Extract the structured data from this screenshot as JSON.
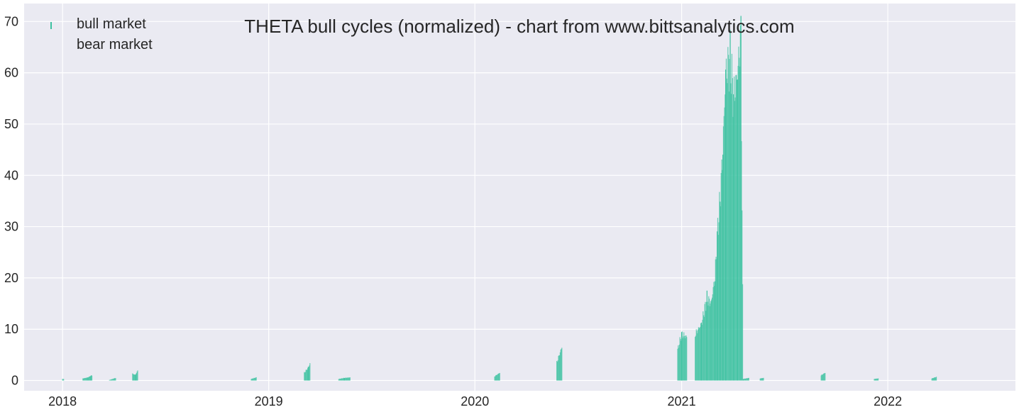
{
  "chart_data": {
    "type": "bar",
    "title": "THETA bull cycles (normalized)  - chart from www.bittsanalytics.com",
    "xlabel": "",
    "ylabel": "",
    "x_range": [
      "2017-10-25",
      "2022-08-15"
    ],
    "ylim": [
      -2,
      73.5
    ],
    "yticks": [
      0,
      10,
      20,
      30,
      40,
      50,
      60,
      70
    ],
    "xticks": [
      {
        "label": "2018",
        "date": "2018-01-01"
      },
      {
        "label": "2019",
        "date": "2019-01-01"
      },
      {
        "label": "2020",
        "date": "2020-01-01"
      },
      {
        "label": "2021",
        "date": "2021-01-01"
      },
      {
        "label": "2022",
        "date": "2022-01-01"
      }
    ],
    "grid": true,
    "legend_position": "top-left",
    "series": [
      {
        "name": "bull market",
        "color": "#3cc1a0",
        "anchors": [
          [
            "2018-01-01",
            0.3
          ],
          [
            "2018-01-03",
            0.3
          ],
          [
            "2018-02-06",
            0.4
          ],
          [
            "2018-02-15",
            0.6
          ],
          [
            "2018-02-20",
            0.9
          ],
          [
            "2018-02-22",
            1.0
          ],
          [
            "2018-03-25",
            0.1
          ],
          [
            "2018-04-05",
            0.5
          ],
          [
            "2018-04-20",
            1.0
          ],
          [
            "2018-05-05",
            1.3
          ],
          [
            "2018-05-10",
            1.1
          ],
          [
            "2018-05-14",
            1.9
          ],
          [
            "2018-08-01",
            0.5
          ],
          [
            "2018-08-15",
            0.6
          ],
          [
            "2018-08-31",
            0.7
          ],
          [
            "2018-12-01",
            0.3
          ],
          [
            "2018-12-10",
            0.6
          ],
          [
            "2018-12-30",
            0.2
          ],
          [
            "2019-01-20",
            0.3
          ],
          [
            "2019-02-05",
            0.5
          ],
          [
            "2019-02-20",
            1.0
          ],
          [
            "2019-03-05",
            1.5
          ],
          [
            "2019-03-12",
            2.5
          ],
          [
            "2019-03-15",
            3.3
          ],
          [
            "2019-05-05",
            0.3
          ],
          [
            "2019-05-15",
            0.5
          ],
          [
            "2019-05-25",
            0.6
          ],
          [
            "2019-07-08",
            0.3
          ],
          [
            "2019-07-25",
            0.5
          ],
          [
            "2019-11-25",
            0.2
          ],
          [
            "2019-12-20",
            0.4
          ],
          [
            "2020-01-20",
            0.6
          ],
          [
            "2020-02-05",
            0.8
          ],
          [
            "2020-02-14",
            1.5
          ],
          [
            "2020-03-25",
            0.2
          ],
          [
            "2020-04-10",
            0.4
          ],
          [
            "2020-04-25",
            0.8
          ],
          [
            "2020-05-10",
            1.5
          ],
          [
            "2020-05-25",
            3.5
          ],
          [
            "2020-06-03",
            6.5
          ],
          [
            "2020-06-20",
            0.2
          ],
          [
            "2020-07-15",
            0.3
          ],
          [
            "2020-08-01",
            0.8
          ],
          [
            "2020-08-20",
            1.5
          ],
          [
            "2020-09-10",
            2.5
          ],
          [
            "2020-09-25",
            2.6
          ],
          [
            "2020-10-10",
            2.2
          ],
          [
            "2020-11-01",
            2.0
          ],
          [
            "2020-11-25",
            2.2
          ],
          [
            "2020-12-10",
            3.0
          ],
          [
            "2020-12-25",
            6.0
          ],
          [
            "2021-01-01",
            9.0
          ],
          [
            "2021-01-10",
            8.5
          ],
          [
            "2021-01-25",
            9.0
          ],
          [
            "2021-02-05",
            11.0
          ],
          [
            "2021-02-15",
            16.0
          ],
          [
            "2021-02-22",
            15.0
          ],
          [
            "2021-03-01",
            20.0
          ],
          [
            "2021-03-05",
            28.0
          ],
          [
            "2021-03-10",
            35.0
          ],
          [
            "2021-03-15",
            45.0
          ],
          [
            "2021-03-20",
            60.0
          ],
          [
            "2021-03-28",
            62.5
          ],
          [
            "2021-04-03",
            55.0
          ],
          [
            "2021-04-10",
            60.0
          ],
          [
            "2021-04-16",
            67.5
          ],
          [
            "2021-04-20",
            0.3
          ],
          [
            "2021-04-30",
            0.5
          ],
          [
            "2021-05-20",
            0.4
          ],
          [
            "2021-05-26",
            0.5
          ],
          [
            "2021-07-20",
            0.5
          ],
          [
            "2021-08-10",
            0.8
          ],
          [
            "2021-09-05",
            1.0
          ],
          [
            "2021-09-12",
            1.5
          ],
          [
            "2021-10-01",
            0.4
          ],
          [
            "2021-10-20",
            0.5
          ],
          [
            "2021-11-05",
            0.8
          ],
          [
            "2021-12-08",
            0.3
          ],
          [
            "2021-12-15",
            0.4
          ],
          [
            "2022-01-25",
            0.3
          ],
          [
            "2022-02-10",
            0.5
          ],
          [
            "2022-02-25",
            0.3
          ],
          [
            "2022-03-20",
            0.4
          ],
          [
            "2022-03-28",
            0.7
          ]
        ]
      },
      {
        "name": "bear market",
        "color": "#c44e52",
        "anchors": []
      }
    ]
  }
}
